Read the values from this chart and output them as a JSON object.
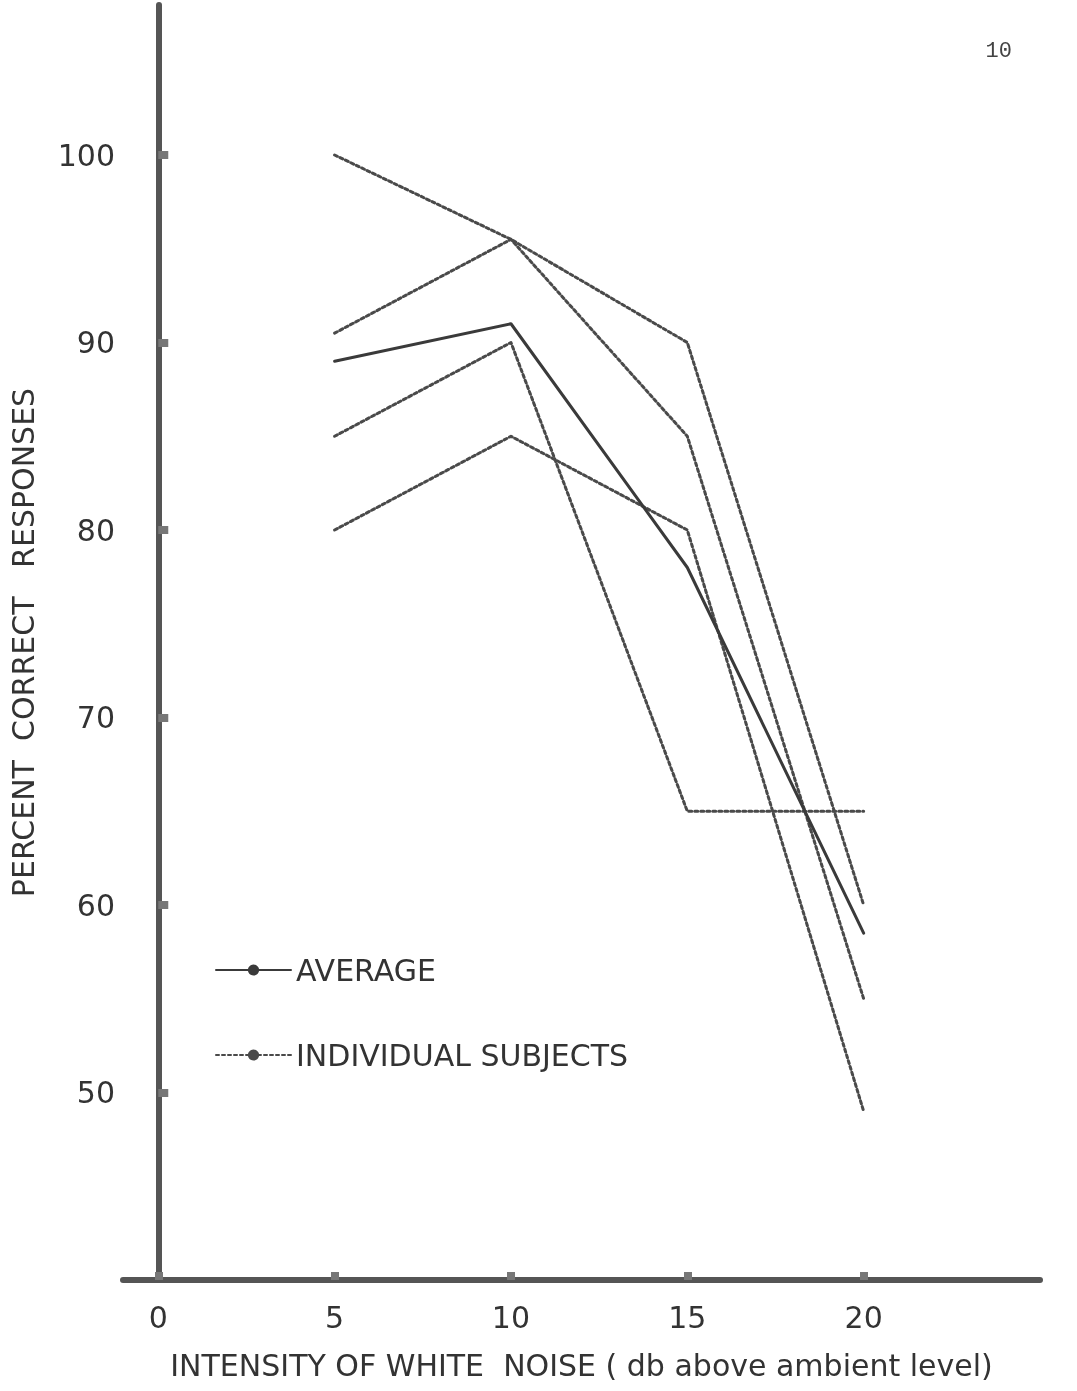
{
  "chart_data": {
    "type": "line",
    "xlabel": "INTENSITY OF WHITE  NOISE ( db above ambient level)",
    "ylabel": "PERCENT  CORRECT   RESPONSES",
    "x": [
      5,
      10,
      15,
      20
    ],
    "series": [
      {
        "name": "AVERAGE",
        "color": "#3a3a3a",
        "line_style": "solid",
        "values": [
          89,
          91,
          78,
          58.5
        ]
      },
      {
        "name": "INDIVIDUAL SUBJECTS",
        "color": "#4a4a4a",
        "line_style": "dotted",
        "values": [
          100,
          95.5,
          90,
          60
        ]
      },
      {
        "color": "#4a4a4a",
        "line_style": "dotted",
        "values": [
          90.5,
          95.5,
          85,
          55
        ]
      },
      {
        "color": "#4a4a4a",
        "line_style": "dotted",
        "values": [
          85,
          90,
          65,
          65
        ]
      },
      {
        "color": "#4a4a4a",
        "line_style": "dotted",
        "values": [
          80,
          85,
          80,
          49
        ]
      }
    ],
    "xlim": [
      -1,
      25
    ],
    "xticks": [
      0,
      5,
      10,
      15,
      20
    ],
    "ylim": [
      40,
      108
    ],
    "yticks": [
      50,
      60,
      70,
      80,
      90,
      100
    ],
    "grid": false,
    "legend": "bottom left",
    "marker": "none",
    "annotations": [
      "10"
    ]
  }
}
